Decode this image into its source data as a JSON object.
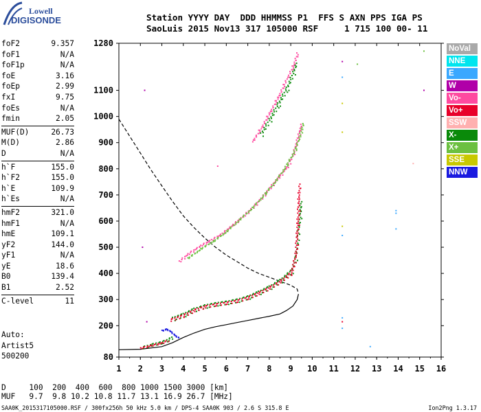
{
  "logo": {
    "line1": "Lowell",
    "line2": "DIGISONDE"
  },
  "header": {
    "line1": "Station YYYY DAY  DDD HHMMSS P1  FFS S AXN PPS IGA PS",
    "line2": "SaoLuis 2015 Nov13 317 105000 RSF     1 715 100 00- 11"
  },
  "params": {
    "group1": [
      {
        "label": "foF2",
        "value": "9.357"
      },
      {
        "label": "foF1",
        "value": "N/A"
      },
      {
        "label": "foF1p",
        "value": "N/A"
      },
      {
        "label": "foE",
        "value": "3.16"
      },
      {
        "label": "foEp",
        "value": "2.99"
      },
      {
        "label": "fxI",
        "value": "9.75"
      },
      {
        "label": "foEs",
        "value": "N/A"
      },
      {
        "label": "fmin",
        "value": "2.05"
      }
    ],
    "group2": [
      {
        "label": "MUF(D)",
        "value": "26.73"
      },
      {
        "label": "M(D)",
        "value": "2.86"
      },
      {
        "label": "D",
        "value": "N/A"
      }
    ],
    "group3": [
      {
        "label": "h`F",
        "value": "155.0"
      },
      {
        "label": "h`F2",
        "value": "155.0"
      },
      {
        "label": "h`E",
        "value": "109.9"
      },
      {
        "label": "h`Es",
        "value": "N/A"
      }
    ],
    "group4": [
      {
        "label": "hmF2",
        "value": "321.0"
      },
      {
        "label": "hmF1",
        "value": "N/A"
      },
      {
        "label": "hmE",
        "value": "109.1"
      },
      {
        "label": "yF2",
        "value": "144.0"
      },
      {
        "label": "yF1",
        "value": "N/A"
      },
      {
        "label": "yE",
        "value": "18.6"
      },
      {
        "label": "B0",
        "value": "139.4"
      },
      {
        "label": "B1",
        "value": "2.52"
      }
    ],
    "group5": [
      {
        "label": "C-level",
        "value": "11"
      }
    ]
  },
  "auto": {
    "line1": "Auto:",
    "line2": "Artist5",
    "line3": "500200"
  },
  "legend": [
    {
      "label": "NoVal",
      "color": "#a9a9a9"
    },
    {
      "label": "NNE",
      "color": "#00e5ee"
    },
    {
      "label": "E",
      "color": "#3aa8ff"
    },
    {
      "label": "W",
      "color": "#b000a8"
    },
    {
      "label": "Vo-",
      "color": "#ff4aa0"
    },
    {
      "label": "Vo+",
      "color": "#e8002a"
    },
    {
      "label": "SSW",
      "color": "#ffb0b0"
    },
    {
      "label": "X-",
      "color": "#0a8a0a"
    },
    {
      "label": "X+",
      "color": "#6cc040"
    },
    {
      "label": "SSE",
      "color": "#c8c800"
    },
    {
      "label": "NNW",
      "color": "#1a1ae0"
    }
  ],
  "muf_table": {
    "d_line": "D     100  200  400  600  800 1000 1500 3000 [km]",
    "muf_line": "MUF   9.7  9.8 10.2 10.8 11.7 13.1 16.9 26.7 [MHz]"
  },
  "footer": {
    "left": "SAA0K_2015317105000.RSF / 300fx256h 50 kHz 5.0 km / DPS-4 SAA0K 903 / 2.6 S 315.8 E",
    "right": "Ion2Png 1.3.17"
  },
  "chart_data": {
    "type": "scatter",
    "xlim": [
      1,
      16
    ],
    "ylim": [
      80,
      1280
    ],
    "x_ticks": [
      "1",
      "2",
      "3",
      "4",
      "5",
      "6",
      "7",
      "8",
      "9",
      "10",
      "11",
      "12",
      "13",
      "14",
      "15",
      "16"
    ],
    "y_ticks": [
      "80",
      "200",
      "300",
      "400",
      "500",
      "600",
      "700",
      "800",
      "900",
      "1000",
      "1100",
      "1280"
    ],
    "grid": false,
    "legend_placement": "right",
    "series": [
      {
        "kind": "trace",
        "color": "#0a8a0a",
        "points": [
          [
            3.5,
            230
          ],
          [
            4,
            245
          ],
          [
            4.5,
            265
          ],
          [
            5,
            278
          ],
          [
            5.5,
            286
          ],
          [
            6,
            292
          ],
          [
            6.5,
            300
          ],
          [
            7,
            312
          ],
          [
            7.5,
            330
          ],
          [
            8,
            350
          ],
          [
            8.5,
            375
          ],
          [
            9,
            410
          ],
          [
            9.2,
            460
          ],
          [
            9.3,
            560
          ],
          [
            9.4,
            620
          ],
          [
            9.45,
            680
          ]
        ]
      },
      {
        "kind": "trace",
        "color": "#e8002a",
        "points": [
          [
            3.4,
            225
          ],
          [
            4,
            242
          ],
          [
            4.5,
            262
          ],
          [
            5,
            276
          ],
          [
            5.5,
            284
          ],
          [
            6,
            290
          ],
          [
            6.5,
            298
          ],
          [
            7,
            310
          ],
          [
            7.5,
            328
          ],
          [
            8,
            348
          ],
          [
            8.5,
            372
          ],
          [
            9,
            405
          ],
          [
            9.2,
            470
          ],
          [
            9.3,
            600
          ],
          [
            9.35,
            700
          ],
          [
            9.38,
            750
          ]
        ]
      },
      {
        "kind": "trace",
        "color": "#ff4aa0",
        "points": [
          [
            3.8,
            450
          ],
          [
            4.2,
            478
          ],
          [
            4.8,
            510
          ],
          [
            5.3,
            532
          ],
          [
            5.8,
            556
          ],
          [
            6.3,
            590
          ],
          [
            6.8,
            625
          ],
          [
            7.2,
            655
          ],
          [
            7.6,
            690
          ],
          [
            8,
            730
          ],
          [
            8.4,
            770
          ],
          [
            8.8,
            810
          ],
          [
            9.1,
            860
          ],
          [
            9.3,
            920
          ],
          [
            9.5,
            980
          ]
        ]
      },
      {
        "kind": "trace",
        "color": "#6cc040",
        "points": [
          [
            4.2,
            462
          ],
          [
            4.8,
            498
          ],
          [
            5.4,
            528
          ],
          [
            6,
            565
          ],
          [
            6.6,
            610
          ],
          [
            7.2,
            655
          ],
          [
            7.8,
            710
          ],
          [
            8.3,
            760
          ],
          [
            8.8,
            820
          ],
          [
            9.2,
            880
          ],
          [
            9.6,
            985
          ]
        ]
      },
      {
        "kind": "trace",
        "color": "#ff4aa0",
        "points": [
          [
            7.2,
            910
          ],
          [
            7.6,
            960
          ],
          [
            8,
            1020
          ],
          [
            8.4,
            1080
          ],
          [
            8.8,
            1150
          ],
          [
            9.1,
            1200
          ],
          [
            9.3,
            1250
          ]
        ]
      },
      {
        "kind": "trace",
        "color": "#0a8a0a",
        "points": [
          [
            7.6,
            935
          ],
          [
            8,
            990
          ],
          [
            8.4,
            1050
          ],
          [
            8.8,
            1110
          ],
          [
            9.1,
            1170
          ],
          [
            9.25,
            1210
          ]
        ]
      },
      {
        "kind": "trace",
        "color": "#0a8a0a",
        "points": [
          [
            2.1,
            120
          ],
          [
            2.5,
            130
          ],
          [
            3,
            140
          ],
          [
            3.3,
            150
          ],
          [
            3.5,
            160
          ]
        ]
      },
      {
        "kind": "trace",
        "color": "#e8002a",
        "points": [
          [
            2,
            118
          ],
          [
            2.5,
            128
          ],
          [
            3,
            138
          ],
          [
            3.3,
            148
          ]
        ]
      },
      {
        "kind": "trace",
        "color": "#1a1ae0",
        "points": [
          [
            3,
            185
          ],
          [
            3.2,
            190
          ],
          [
            3.4,
            180
          ],
          [
            3.6,
            165
          ],
          [
            3.8,
            155
          ]
        ]
      }
    ],
    "profile": {
      "kind": "solid",
      "color": "#000",
      "points": [
        [
          1,
          108
        ],
        [
          2,
          110
        ],
        [
          3,
          120
        ],
        [
          3.5,
          135
        ],
        [
          4,
          155
        ],
        [
          4.5,
          172
        ],
        [
          5,
          186
        ],
        [
          5.5,
          196
        ],
        [
          6,
          204
        ],
        [
          6.5,
          212
        ],
        [
          7,
          220
        ],
        [
          7.5,
          228
        ],
        [
          8,
          236
        ],
        [
          8.5,
          245
        ],
        [
          8.8,
          258
        ],
        [
          9.1,
          275
        ],
        [
          9.3,
          300
        ],
        [
          9.36,
          321
        ]
      ]
    },
    "muf_curve": {
      "kind": "dashed",
      "color": "#000",
      "points": [
        [
          1,
          990
        ],
        [
          1.5,
          925
        ],
        [
          2,
          860
        ],
        [
          2.5,
          795
        ],
        [
          3,
          735
        ],
        [
          3.5,
          675
        ],
        [
          4,
          620
        ],
        [
          4.5,
          575
        ],
        [
          5,
          535
        ],
        [
          5.5,
          500
        ],
        [
          6,
          470
        ],
        [
          6.5,
          445
        ],
        [
          7,
          420
        ],
        [
          7.5,
          400
        ],
        [
          8,
          385
        ],
        [
          8.5,
          370
        ],
        [
          9,
          355
        ],
        [
          9.3,
          340
        ],
        [
          9.35,
          325
        ]
      ]
    },
    "isolated_points": [
      {
        "x": 2.2,
        "y": 1100,
        "color": "#b000a8"
      },
      {
        "x": 2.1,
        "y": 500,
        "color": "#b000a8"
      },
      {
        "x": 2.3,
        "y": 215,
        "color": "#b000a8"
      },
      {
        "x": 5.6,
        "y": 810,
        "color": "#ff4aa0"
      },
      {
        "x": 11.4,
        "y": 1210,
        "color": "#b000a8"
      },
      {
        "x": 11.4,
        "y": 1150,
        "color": "#3aa8ff"
      },
      {
        "x": 12.1,
        "y": 1200,
        "color": "#6cc040"
      },
      {
        "x": 11.4,
        "y": 1050,
        "color": "#c8c800"
      },
      {
        "x": 11.4,
        "y": 940,
        "color": "#c8c800"
      },
      {
        "x": 11.4,
        "y": 580,
        "color": "#c8c800"
      },
      {
        "x": 11.4,
        "y": 545,
        "color": "#3aa8ff"
      },
      {
        "x": 11.4,
        "y": 230,
        "color": "#3aa8ff"
      },
      {
        "x": 11.4,
        "y": 215,
        "color": "#e8002a"
      },
      {
        "x": 11.4,
        "y": 190,
        "color": "#3aa8ff"
      },
      {
        "x": 12.7,
        "y": 120,
        "color": "#3aa8ff"
      },
      {
        "x": 13.9,
        "y": 640,
        "color": "#3aa8ff"
      },
      {
        "x": 13.9,
        "y": 630,
        "color": "#3aa8ff"
      },
      {
        "x": 13.9,
        "y": 570,
        "color": "#3aa8ff"
      },
      {
        "x": 14.7,
        "y": 820,
        "color": "#ffb0b0"
      },
      {
        "x": 15.2,
        "y": 1250,
        "color": "#6cc040"
      },
      {
        "x": 15.2,
        "y": 1100,
        "color": "#b000a8"
      }
    ]
  }
}
